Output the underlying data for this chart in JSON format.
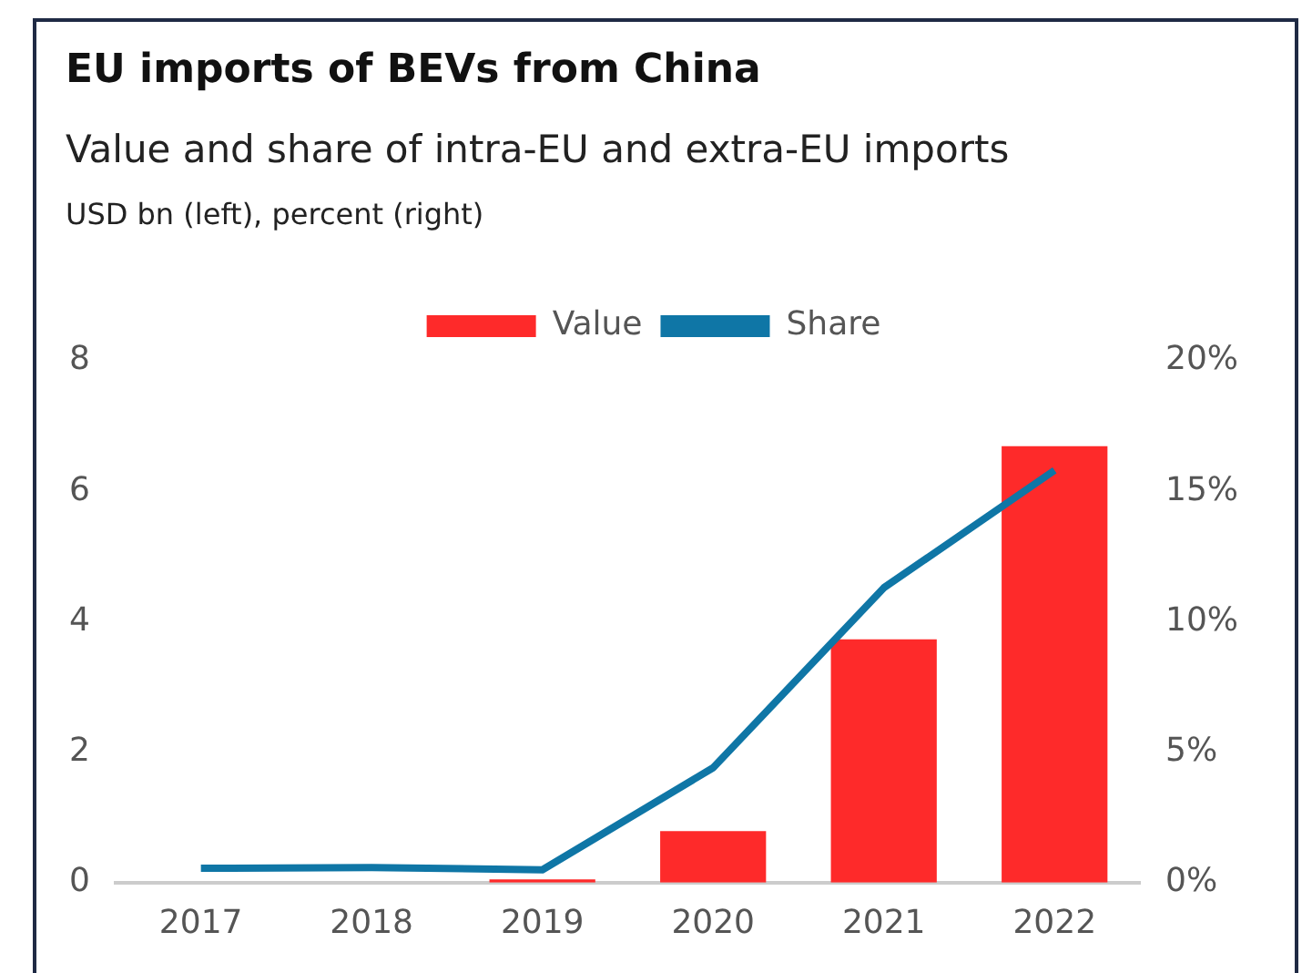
{
  "chart_data": {
    "type": "bar",
    "title": "EU imports of BEVs from China",
    "subtitle": "Value and share of intra-EU and extra-EU imports",
    "annotations": [
      "USD bn (left), percent (right)"
    ],
    "categories": [
      "2017",
      "2018",
      "2019",
      "2020",
      "2021",
      "2022"
    ],
    "series": [
      {
        "name": "Value",
        "color": "#fe2a2a",
        "values": [
          null,
          null,
          0.05,
          0.79,
          3.73,
          6.69
        ]
      },
      {
        "name": "Share",
        "type": "line",
        "axis": "y2",
        "color": "#0f76a6",
        "values": [
          0.55,
          0.58,
          0.49,
          4.4,
          11.3,
          15.8
        ]
      }
    ],
    "ylim": [
      0,
      8
    ],
    "yticks": [
      0,
      2,
      4,
      6,
      8
    ],
    "y2lim": [
      0,
      20
    ],
    "y2ticks": [
      {
        "value": 0,
        "label": "0%"
      },
      {
        "value": 5,
        "label": "5%"
      },
      {
        "value": 10,
        "label": "10%"
      },
      {
        "value": 15,
        "label": "15%"
      },
      {
        "value": 20,
        "label": "20%"
      }
    ],
    "grid": false,
    "legend": "top",
    "marker": "none",
    "line_style": "solid"
  }
}
